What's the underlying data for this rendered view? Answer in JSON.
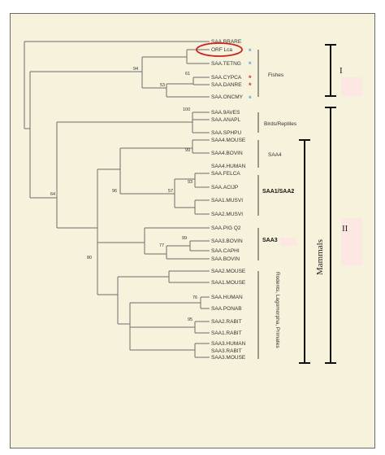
{
  "taxa": [
    "SAA.BRARE",
    "ORF Lca",
    "SAA.TETNG",
    "SAA.CYPCA",
    "SAA.DANRE",
    "SAA.ONCMY",
    "SAA.9AVES",
    "SAA.ANAPL",
    "SAA.SPHPU",
    "SAA4.MOUSE",
    "SAA4.BOVIN",
    "SAA4.HUMAN",
    "SAA.FELCA",
    "SAA.ACIJP",
    "SAA1.MUSVI",
    "SAA2.MUSVI",
    "SAA.PIG Q2",
    "SAA3.BOVIN",
    "SAA.CAPHI",
    "SAA.BOVIN",
    "SAA2.MOUSE",
    "SAA1.MOUSE",
    "SAA.HUMAN",
    "SAA.PONAB",
    "SAA2.RABIT",
    "SAA1.RABIT",
    "SAA3.HUMAN",
    "SAA3.RABIT",
    "SAA3.MOUSE"
  ],
  "bootstrap": {
    "b94": "94",
    "b61": "61",
    "b53": "53",
    "b100": "100",
    "b64": "64",
    "b99a": "99",
    "b96": "96",
    "b93": "93",
    "b57": "57",
    "b99b": "99",
    "b77": "77",
    "b80": "80",
    "b76": "76",
    "b95": "95"
  },
  "groups": {
    "fishes": "Fishes",
    "birds": "Birds/Reptiles",
    "saa4": "SAA4",
    "saa12": "SAA1/SAA2",
    "saa3": "SAA3",
    "rodents": "Rodents, Lagomorpha, Primates",
    "mammals": "Mammals"
  },
  "clades": {
    "one": "I",
    "two": "II"
  },
  "stars": {
    "glyph": "*",
    "blue": "#5aa9e6",
    "red": "#d9342b"
  },
  "colors": {
    "circle": "#cc2222"
  }
}
